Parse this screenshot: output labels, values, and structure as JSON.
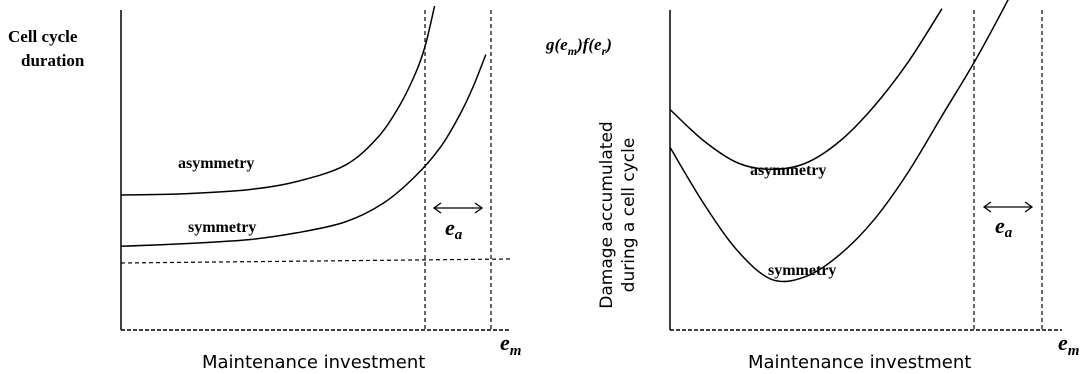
{
  "chart_data": [
    {
      "type": "line",
      "ylabel": [
        "Cell cycle",
        "duration"
      ],
      "xlabel": "Maintenance investment",
      "x_symbol": "e",
      "x_symbol_sub": "m",
      "ea_label": "e",
      "ea_sub": "a",
      "series": [
        {
          "name": "asymmetry",
          "x": [
            0,
            0.2,
            0.4,
            0.55,
            0.7,
            0.8,
            0.87,
            0.92,
            0.95,
            0.98
          ],
          "y": [
            0.5,
            0.505,
            0.52,
            0.55,
            0.61,
            0.71,
            0.83,
            0.95,
            1.05,
            1.2
          ]
        },
        {
          "name": "symmetry",
          "x": [
            0,
            0.2,
            0.4,
            0.55,
            0.7,
            0.82,
            0.92,
            1.0,
            1.06,
            1.1,
            1.14
          ],
          "y": [
            0.31,
            0.32,
            0.335,
            0.36,
            0.4,
            0.47,
            0.57,
            0.68,
            0.8,
            0.9,
            1.02
          ]
        }
      ]
    },
    {
      "type": "line",
      "ylabel": [
        "g(e",
        "m",
        ")f(e",
        "r",
        ")"
      ],
      "ylabel2": [
        "Damage accumulated",
        "during a cell cycle"
      ],
      "xlabel": "Maintenance investment",
      "x_symbol": "e",
      "x_symbol_sub": "m",
      "ea_label": "e",
      "ea_sub": "a",
      "series": [
        {
          "name": "asymmetry",
          "x": [
            0,
            0.1,
            0.2,
            0.3,
            0.4,
            0.5,
            0.6,
            0.7,
            0.8
          ],
          "y": [
            0.7,
            0.6,
            0.53,
            0.51,
            0.53,
            0.6,
            0.71,
            0.85,
            1.02
          ]
        },
        {
          "name": "symmetry",
          "x": [
            0,
            0.1,
            0.2,
            0.3,
            0.4,
            0.5,
            0.6,
            0.7,
            0.8,
            0.9,
            1.0,
            1.05
          ],
          "y": [
            0.58,
            0.4,
            0.25,
            0.16,
            0.17,
            0.24,
            0.35,
            0.5,
            0.68,
            0.86,
            1.06,
            1.17
          ]
        }
      ]
    }
  ]
}
